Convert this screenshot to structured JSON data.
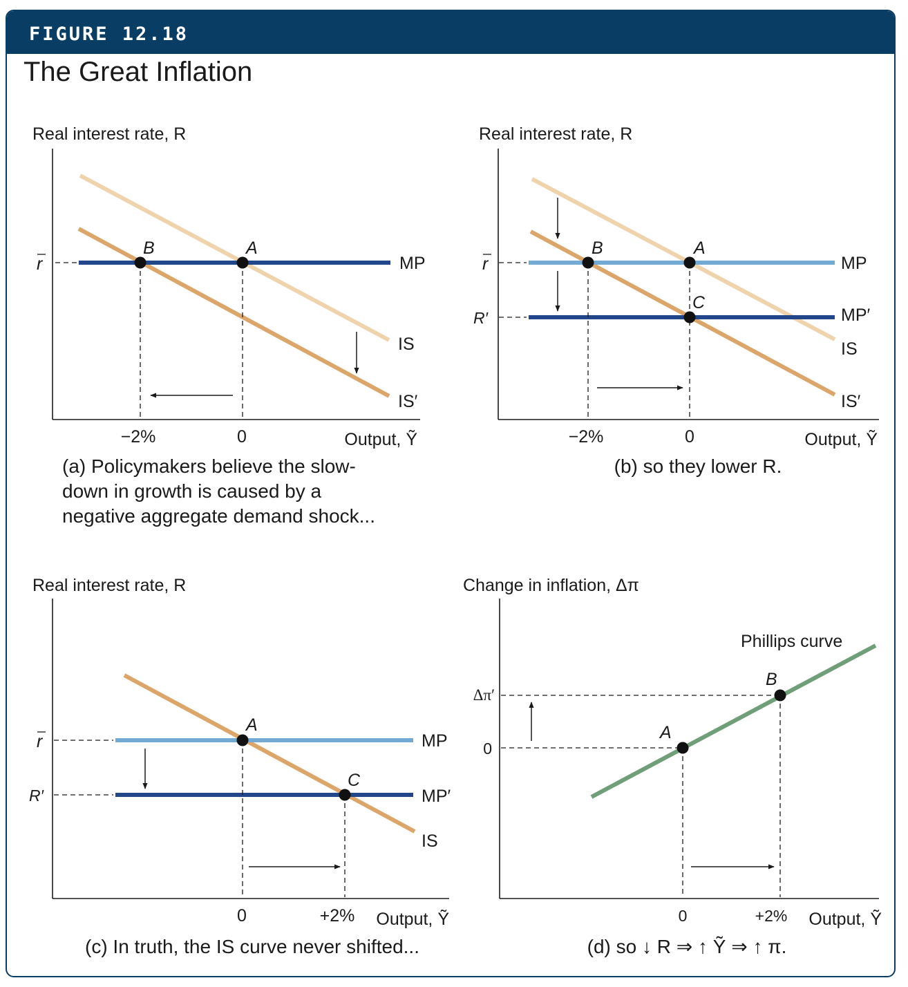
{
  "header": {
    "figure_label": "FIGURE 12.18",
    "title": "The Great Inflation"
  },
  "colors": {
    "banner": "#0a3d63",
    "is_light": "#efd3ad",
    "is_dark": "#dca56a",
    "mp_dark": "#22468a",
    "mp_light": "#72aad3",
    "phillips": "#6f9e78",
    "point": "#111111"
  },
  "panel_a": {
    "ylabel": "Real interest rate, R",
    "xlabel": "Output, Ỹ",
    "ytick_rbar": "r",
    "xticks": [
      "−2%",
      "0"
    ],
    "curve_labels": {
      "mp": "MP",
      "is": "IS",
      "is_prime": "IS′"
    },
    "points": {
      "a": "A",
      "b": "B"
    },
    "caption": [
      "(a) Policymakers believe the slow-",
      "down in growth is caused by a",
      "negative aggregate demand shock..."
    ]
  },
  "panel_b": {
    "ylabel": "Real interest rate, R",
    "xlabel": "Output, Ỹ",
    "ytick_rbar": "r",
    "ytick_rprime": "R′",
    "xticks": [
      "−2%",
      "0"
    ],
    "curve_labels": {
      "mp": "MP",
      "mp_prime": "MP′",
      "is": "IS",
      "is_prime": "IS′"
    },
    "points": {
      "a": "A",
      "b": "B",
      "c": "C"
    },
    "caption": "(b) so they lower R."
  },
  "panel_c": {
    "ylabel": "Real interest rate, R",
    "xlabel": "Output, Ỹ",
    "ytick_rbar": "r",
    "ytick_rprime": "R′",
    "xticks": [
      "0",
      "+2%"
    ],
    "curve_labels": {
      "mp": "MP",
      "mp_prime": "MP′",
      "is": "IS"
    },
    "points": {
      "a": "A",
      "c": "C"
    },
    "caption": "(c) In truth, the IS curve never shifted..."
  },
  "panel_d": {
    "ylabel": "Change in inflation, Δπ",
    "xlabel": "Output, Ỹ",
    "yticks": [
      "Δπ′",
      "0"
    ],
    "xticks": [
      "0",
      "+2%"
    ],
    "curve_labels": {
      "phillips": "Phillips curve"
    },
    "points": {
      "a": "A",
      "b": "B"
    },
    "caption": "(d) so ↓ R ⇒ ↑ Ỹ ⇒ ↑ π."
  }
}
